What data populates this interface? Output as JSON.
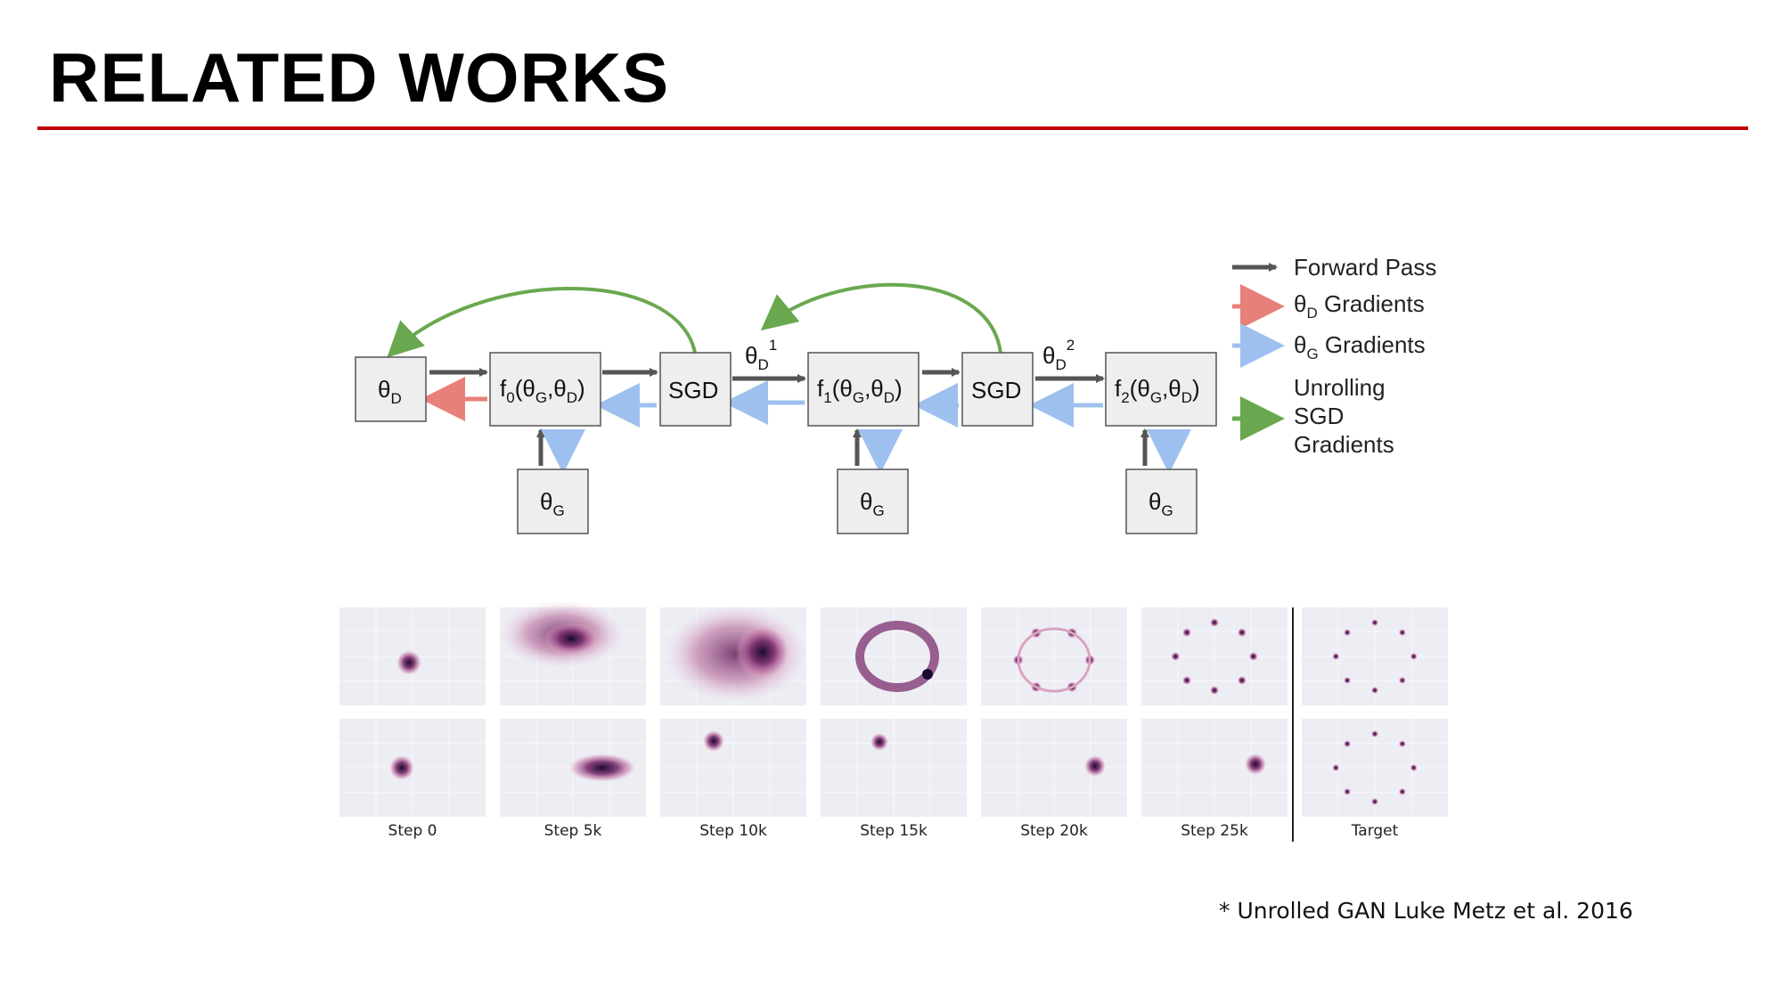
{
  "slide": {
    "title": "RELATED WORKS",
    "footnote": "* Unrolled GAN Luke Metz et al. 2016"
  },
  "diagram": {
    "nodes": {
      "theta_d": {
        "base": "θ",
        "sub": "D"
      },
      "f0": {
        "pre": "f",
        "sub0": "0",
        "mid": "(θ",
        "sub1": "G",
        "comma": ",θ",
        "sub2": "D",
        "post": ")"
      },
      "sgd1": "SGD",
      "f1": {
        "pre": "f",
        "sub0": "1",
        "mid": "(θ",
        "sub1": "G",
        "comma": ",θ",
        "sub2": "D",
        "post": ")"
      },
      "sgd2": "SGD",
      "f2": {
        "pre": "f",
        "sub0": "2",
        "mid": "(θ",
        "sub1": "G",
        "comma": ",θ",
        "sub2": "D",
        "post": ")"
      },
      "theta_g": {
        "base": "θ",
        "sub": "G"
      }
    },
    "edge_labels": {
      "e1": {
        "base": "θ",
        "sub": "D",
        "sup": "1"
      },
      "e2": {
        "base": "θ",
        "sub": "D",
        "sup": "2"
      }
    },
    "legend": [
      {
        "label": "Forward Pass",
        "color": "#555555"
      },
      {
        "label_base": "θ",
        "label_sub": "D",
        "label_rest": " Gradients",
        "color": "#e8807a"
      },
      {
        "label_base": "θ",
        "label_sub": "G",
        "label_rest": " Gradients",
        "color": "#9dc0ee"
      },
      {
        "lines": [
          "Unrolling",
          "SGD",
          "Gradients"
        ],
        "color": "#6aa84f"
      }
    ],
    "colors": {
      "forward": "#555555",
      "theta_d_grad": "#e8807a",
      "theta_g_grad": "#9dc0ee",
      "unroll": "#6aa84f"
    }
  },
  "samples": {
    "steps": [
      "Step 0",
      "Step 5k",
      "Step 10k",
      "Step 15k",
      "Step 20k",
      "Step 25k"
    ],
    "target_label": "Target",
    "rows": 2
  }
}
